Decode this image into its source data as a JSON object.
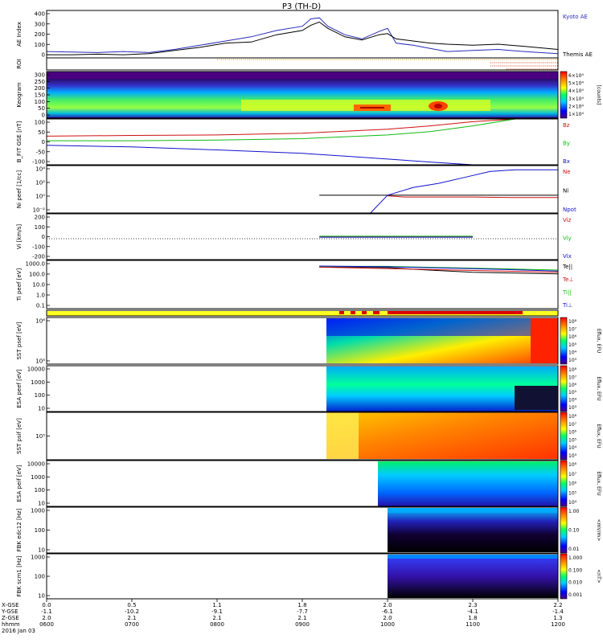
{
  "title": "P3 (TH-D)",
  "date_label": "2016 Jan 03",
  "x_axis": {
    "row_labels": [
      "X-GSE",
      "Y-GSE",
      "Z-GSE",
      "hhmm"
    ],
    "columns": [
      {
        "x": "0.0",
        "y": "-1.1",
        "z": "2.0",
        "t": "0600"
      },
      {
        "x": "0.5",
        "y": "-10.2",
        "z": "2.1",
        "t": "0700"
      },
      {
        "x": "1.1",
        "y": "-9.1",
        "z": "2.1",
        "t": "0800"
      },
      {
        "x": "1.8",
        "y": "-7.7",
        "z": "2.1",
        "t": "0900"
      },
      {
        "x": "2.0",
        "y": "-6.1",
        "z": "2.0",
        "t": "1000"
      },
      {
        "x": "2.3",
        "y": "-4.1",
        "z": "1.8",
        "t": "1100"
      },
      {
        "x": "2.2",
        "y": "-1.4",
        "z": "1.3",
        "t": "1200"
      }
    ]
  },
  "panels": [
    {
      "id": "ae",
      "ylabel": "AE Index",
      "ticks": [
        "400",
        "300",
        "200",
        "100",
        "0"
      ],
      "legend": [
        {
          "text": "Kyoto AE",
          "color": "#2a2ab8"
        },
        {
          "text": "Themis AE",
          "color": "#000000"
        }
      ]
    },
    {
      "id": "roi",
      "ylabel": "ROI",
      "ticks": [],
      "legend": []
    },
    {
      "id": "keogram",
      "ylabel": "Keogram",
      "ticks": [
        "300",
        "250",
        "200",
        "150",
        "100",
        "50",
        "0"
      ],
      "legend": [],
      "colorbar_ticks": [
        "6×10⁴",
        "5×10⁴",
        "4×10⁴",
        "3×10⁴",
        "2×10⁴",
        "1×10⁴"
      ],
      "colorbar_label": "[counts]"
    },
    {
      "id": "bfit",
      "ylabel": "B_FIT GSE [nT]",
      "ticks": [
        "100",
        "50",
        "0",
        "-50",
        "-100"
      ],
      "legend": [
        {
          "text": "Bz",
          "color": "#cc1111"
        },
        {
          "text": "By",
          "color": "#11bb11"
        },
        {
          "text": "Bx",
          "color": "#1111cc"
        }
      ]
    },
    {
      "id": "ni",
      "ylabel": "Ni peef [1/cc]",
      "ticks": [
        "10⁴",
        "10²",
        "10⁰",
        "10⁻²"
      ],
      "legend": [
        {
          "text": "Ne",
          "color": "#cc1111"
        },
        {
          "text": "Ni",
          "color": "#000000"
        },
        {
          "text": "Npot",
          "color": "#1111cc"
        }
      ]
    },
    {
      "id": "vi",
      "ylabel": "Vi [km/s]",
      "ticks": [
        "200",
        "100",
        "0",
        "-100",
        "-200"
      ],
      "legend": [
        {
          "text": "Viz",
          "color": "#cc1111"
        },
        {
          "text": "Viy",
          "color": "#11bb11"
        },
        {
          "text": "Vix",
          "color": "#1111cc"
        }
      ]
    },
    {
      "id": "ti",
      "ylabel": "Ti peef [eV]",
      "ticks": [
        "1000.0",
        "100.0",
        "10.0",
        "1.0",
        "0.1"
      ],
      "legend": [
        {
          "text": "Te||",
          "color": "#000000"
        },
        {
          "text": "Te⊥",
          "color": "#cc1111"
        },
        {
          "text": "Ti||",
          "color": "#11bb11"
        },
        {
          "text": "Ti⊥",
          "color": "#1111cc"
        }
      ]
    },
    {
      "id": "bar",
      "ylabel": "",
      "ticks": [],
      "legend": []
    },
    {
      "id": "sst_e",
      "ylabel": "SST psef [eV]",
      "ticks": [
        "10⁶",
        "10⁵"
      ],
      "legend": [],
      "colorbar_ticks": [
        "10⁸",
        "10⁷",
        "10⁶",
        "10⁵",
        "10⁴",
        "10³"
      ],
      "colorbar_label": "Eflux, EFU"
    },
    {
      "id": "esa_e",
      "ylabel": "ESA peef [eV]",
      "ticks": [
        "10000",
        "1000",
        "100",
        "10"
      ],
      "legend": [],
      "colorbar_ticks": [
        "10⁸",
        "10⁷",
        "10⁶",
        "10⁵",
        "10⁴",
        "10³"
      ],
      "colorbar_label": "Eflux, EFU"
    },
    {
      "id": "sst_i",
      "ylabel": "SST psif [eV]",
      "ticks": [
        "10⁵"
      ],
      "legend": [],
      "colorbar_ticks": [
        "10⁸",
        "10⁷",
        "10⁶",
        "10⁵",
        "10⁴",
        "10³"
      ],
      "colorbar_label": "Eflux, EFU"
    },
    {
      "id": "esa_i",
      "ylabel": "ESA peif [eV]",
      "ticks": [
        "10000",
        "1000",
        "100",
        "10"
      ],
      "legend": [],
      "colorbar_ticks": [
        "10⁸",
        "10⁷",
        "10⁶",
        "10⁵",
        "10⁴"
      ],
      "colorbar_label": "Eflux, EFU"
    },
    {
      "id": "fbk_e",
      "ylabel": "FBK edc12 [Hz]",
      "ticks": [
        "1000",
        "100",
        "10"
      ],
      "legend": [],
      "colorbar_ticks": [
        "1.00",
        "0.10",
        "0.01"
      ],
      "colorbar_label": "<mV/m>"
    },
    {
      "id": "fbk_b",
      "ylabel": "FBK scm1 [Hz]",
      "ticks": [
        "1000",
        "100",
        "10"
      ],
      "legend": [],
      "colorbar_ticks": [
        "1.000",
        "0.100",
        "0.010",
        "0.001"
      ],
      "colorbar_label": "<nT>"
    }
  ],
  "chart_data": {
    "type": "line",
    "title": "P3 (TH-D)",
    "x_range_hours": [
      6,
      12
    ],
    "ae_index": {
      "ylim": [
        0,
        450
      ],
      "series": [
        {
          "name": "Kyoto AE",
          "color": "#2a2ab8",
          "x": [
            6.0,
            6.3,
            6.6,
            6.9,
            7.2,
            7.5,
            7.8,
            8.1,
            8.4,
            8.7,
            9.0,
            9.1,
            9.2,
            9.3,
            9.5,
            9.7,
            9.9,
            10.0,
            10.1,
            10.3,
            10.5,
            10.7,
            11.0,
            11.3,
            11.6,
            12.0
          ],
          "y": [
            60,
            55,
            50,
            60,
            50,
            80,
            120,
            160,
            200,
            260,
            300,
            370,
            380,
            300,
            220,
            180,
            250,
            280,
            140,
            120,
            90,
            60,
            70,
            80,
            60,
            40
          ]
        },
        {
          "name": "Themis AE",
          "color": "#000000",
          "x": [
            6.0,
            6.3,
            6.6,
            6.9,
            7.2,
            7.5,
            7.8,
            8.1,
            8.4,
            8.7,
            9.0,
            9.1,
            9.2,
            9.3,
            9.5,
            9.7,
            9.9,
            10.0,
            10.1,
            10.3,
            10.5,
            10.7,
            11.0,
            11.3,
            11.6,
            12.0
          ],
          "y": [
            30,
            30,
            35,
            30,
            40,
            70,
            100,
            140,
            150,
            220,
            260,
            310,
            340,
            280,
            200,
            170,
            220,
            230,
            180,
            160,
            140,
            130,
            120,
            130,
            110,
            80
          ]
        }
      ]
    },
    "b_fit_gse": {
      "ylim": [
        -100,
        100
      ],
      "series": [
        {
          "name": "Bz",
          "color": "#cc1111",
          "x": [
            6,
            7,
            8,
            9,
            10,
            10.5,
            11,
            11.5
          ],
          "y": [
            25,
            28,
            30,
            38,
            55,
            70,
            88,
            110
          ]
        },
        {
          "name": "By",
          "color": "#11bb11",
          "x": [
            6,
            7,
            8,
            9,
            10,
            10.5,
            11,
            11.5
          ],
          "y": [
            5,
            5,
            8,
            14,
            30,
            45,
            70,
            100
          ]
        },
        {
          "name": "Bx",
          "color": "#1111cc",
          "x": [
            6,
            7,
            8,
            9,
            9.5,
            10,
            10.5,
            11
          ],
          "y": [
            -15,
            -22,
            -35,
            -50,
            -62,
            -75,
            -88,
            -100
          ]
        }
      ]
    },
    "ni_density": {
      "ylog": true,
      "ylim": [
        0.001,
        100000
      ],
      "series": [
        {
          "name": "Ne",
          "color": "#cc1111",
          "x": [
            10.0,
            10.2,
            11.0,
            11.5,
            12.0
          ],
          "y": [
            0.8,
            0.5,
            0.5,
            0.4,
            0.4
          ]
        },
        {
          "name": "Ni",
          "color": "#000000",
          "x": [
            9.2,
            10.0,
            11.0,
            11.5,
            12.0
          ],
          "y": [
            1.0,
            1.0,
            1.0,
            1.0,
            1.0
          ]
        },
        {
          "name": "Npot",
          "color": "#1111cc",
          "x": [
            9.8,
            10.0,
            10.3,
            10.6,
            10.9,
            11.2,
            11.5,
            12.0
          ],
          "y": [
            0.001,
            1,
            20,
            100,
            1000,
            10000,
            20000,
            20000
          ]
        }
      ]
    },
    "vi": {
      "ylim": [
        -250,
        250
      ],
      "series": [
        {
          "name": "Viz",
          "color": "#cc1111",
          "x": [
            9.2,
            11.0
          ],
          "y": [
            0,
            0
          ]
        },
        {
          "name": "Viy",
          "color": "#11bb11",
          "x": [
            9.2,
            11.0
          ],
          "y": [
            5,
            5
          ]
        },
        {
          "name": "Vix",
          "color": "#1111cc",
          "x": [
            9.2,
            11.0
          ],
          "y": [
            -5,
            -5
          ]
        }
      ]
    },
    "temperature": {
      "ylog": true,
      "ylim": [
        0.05,
        5000
      ],
      "series": [
        {
          "name": "Te||",
          "color": "#000000",
          "x": [
            9.2,
            10.0,
            10.3,
            11.0,
            12.0
          ],
          "y": [
            1000,
            900,
            600,
            300,
            200
          ]
        },
        {
          "name": "Te⊥",
          "color": "#cc1111",
          "x": [
            9.2,
            12.0
          ],
          "y": [
            1000,
            300
          ]
        },
        {
          "name": "Ti||",
          "color": "#11bb11",
          "x": [
            9.2,
            10.0,
            11.0,
            12.0
          ],
          "y": [
            1200,
            1200,
            800,
            500
          ]
        },
        {
          "name": "Ti⊥",
          "color": "#1111cc",
          "x": [
            9.2,
            10.0,
            11.0,
            12.0
          ],
          "y": [
            1300,
            1100,
            700,
            400
          ]
        }
      ]
    }
  }
}
